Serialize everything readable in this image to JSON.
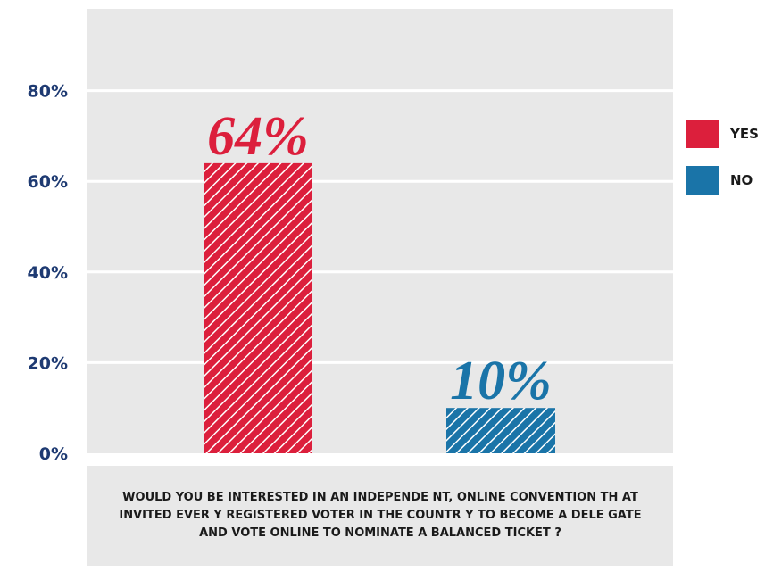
{
  "colors": {
    "yes": "#dc1f3c",
    "no": "#1a74a8",
    "axis_text": "#1e3a72",
    "plot_bg": "#e8e8e8"
  },
  "chart_data": {
    "type": "bar",
    "categories": [
      "YES",
      "NO"
    ],
    "values": [
      64,
      10
    ],
    "data_labels": [
      "64%",
      "10%"
    ],
    "yticks": [
      "0%",
      "20%",
      "40%",
      "60%",
      "80%"
    ],
    "ylim": [
      0,
      100
    ],
    "grid": true,
    "legend_position": "right",
    "series": [
      {
        "name": "YES",
        "values": [
          64,
          null
        ]
      },
      {
        "name": "NO",
        "values": [
          null,
          10
        ]
      }
    ]
  },
  "question": "WOULD YOU BE INTERESTED IN AN INDEPENDE NT, ONLINE CONVENTION TH AT INVITED EVER Y REGISTERED VOTER IN THE COUNTR Y TO BECOME A DELE GATE AND VOTE ONLINE TO NOMINATE A BALANCED TICKET ?"
}
